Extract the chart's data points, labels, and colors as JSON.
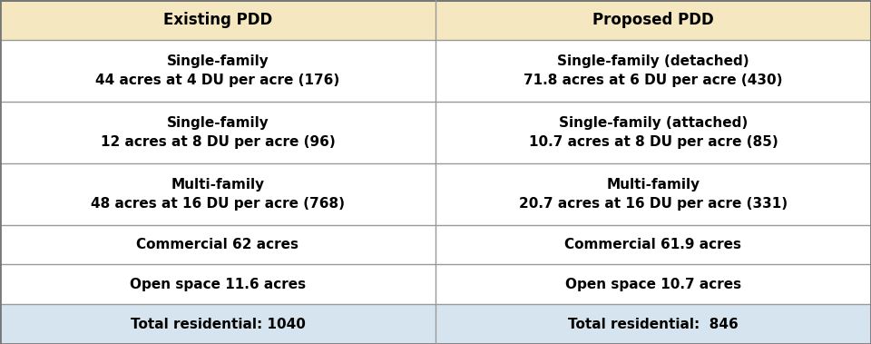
{
  "headers": [
    "Existing PDD",
    "Proposed PDD"
  ],
  "rows": [
    [
      "Single-family\n44 acres at 4 DU per acre (176)",
      "Single-family (detached)\n71.8 acres at 6 DU per acre (430)"
    ],
    [
      "Single-family\n12 acres at 8 DU per acre (96)",
      "Single-family (attached)\n10.7 acres at 8 DU per acre (85)"
    ],
    [
      "Multi-family\n48 acres at 16 DU per acre (768)",
      "Multi-family\n20.7 acres at 16 DU per acre (331)"
    ],
    [
      "Commercial 62 acres",
      "Commercial 61.9 acres"
    ],
    [
      "Open space 11.6 acres",
      "Open space 10.7 acres"
    ],
    [
      "Total residential: 1040",
      "Total residential:  846"
    ]
  ],
  "header_bg": "#F5E8C0",
  "row_bg_normal": "#FFFFFF",
  "row_bg_total": "#D6E4F0",
  "border_color": "#999999",
  "outer_border_color": "#777777",
  "text_color": "#000000",
  "header_fontsize": 12,
  "cell_fontsize_tall": 11,
  "cell_fontsize_short": 11,
  "fig_width": 9.6,
  "fig_height": 3.79,
  "row_heights_rel": [
    1.0,
    1.55,
    1.55,
    1.55,
    1.0,
    1.0,
    1.0
  ]
}
